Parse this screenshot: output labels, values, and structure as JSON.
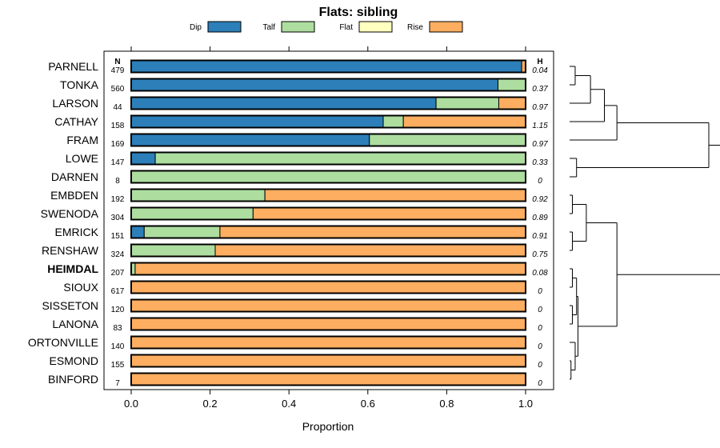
{
  "chart_data": {
    "type": "stacked-bar-horizontal",
    "title": "Flats: sibling",
    "xlabel": "Proportion",
    "xlim": [
      0,
      1
    ],
    "xticks": [
      "0.0",
      "0.2",
      "0.4",
      "0.6",
      "0.8",
      "1.0"
    ],
    "xtick_values": [
      0,
      0.2,
      0.4,
      0.6,
      0.8,
      1.0
    ],
    "n_header": "N",
    "h_header": "H",
    "legend": [
      {
        "name": "Dip",
        "color": "#2c7fb8"
      },
      {
        "name": "Talf",
        "color": "#addd9f"
      },
      {
        "name": "Flat",
        "color": "#ffffbf"
      },
      {
        "name": "Rise",
        "color": "#fdae61"
      }
    ],
    "rows": [
      {
        "label": "PARNELL",
        "n": "479",
        "h": "0.04",
        "bold": false,
        "values": [
          0.99,
          0.0,
          0.0,
          0.01
        ]
      },
      {
        "label": "TONKA",
        "n": "560",
        "h": "0.37",
        "bold": false,
        "values": [
          0.93,
          0.07,
          0.0,
          0.0
        ]
      },
      {
        "label": "LARSON",
        "n": "44",
        "h": "0.97",
        "bold": false,
        "values": [
          0.773,
          0.159,
          0.0,
          0.068
        ]
      },
      {
        "label": "CATHAY",
        "n": "158",
        "h": "1.15",
        "bold": false,
        "values": [
          0.639,
          0.051,
          0.0,
          0.31
        ]
      },
      {
        "label": "FRAM",
        "n": "169",
        "h": "0.97",
        "bold": false,
        "values": [
          0.604,
          0.396,
          0.0,
          0.0
        ]
      },
      {
        "label": "LOWE",
        "n": "147",
        "h": "0.33",
        "bold": false,
        "values": [
          0.061,
          0.939,
          0.0,
          0.0
        ]
      },
      {
        "label": "DARNEN",
        "n": "8",
        "h": "0",
        "bold": false,
        "values": [
          0.0,
          1.0,
          0.0,
          0.0
        ]
      },
      {
        "label": "EMBDEN",
        "n": "192",
        "h": "0.92",
        "bold": false,
        "values": [
          0.0,
          0.339,
          0.0,
          0.661
        ]
      },
      {
        "label": "SWENODA",
        "n": "304",
        "h": "0.89",
        "bold": false,
        "values": [
          0.0,
          0.309,
          0.0,
          0.691
        ]
      },
      {
        "label": "EMRICK",
        "n": "151",
        "h": "0.91",
        "bold": false,
        "values": [
          0.033,
          0.192,
          0.0,
          0.775
        ]
      },
      {
        "label": "RENSHAW",
        "n": "324",
        "h": "0.75",
        "bold": false,
        "values": [
          0.0,
          0.213,
          0.0,
          0.787
        ]
      },
      {
        "label": "HEIMDAL",
        "n": "207",
        "h": "0.08",
        "bold": true,
        "values": [
          0.0,
          0.01,
          0.0,
          0.99
        ]
      },
      {
        "label": "SIOUX",
        "n": "617",
        "h": "0",
        "bold": false,
        "values": [
          0.0,
          0.0,
          0.0,
          1.0
        ]
      },
      {
        "label": "SISSETON",
        "n": "120",
        "h": "0",
        "bold": false,
        "values": [
          0.0,
          0.0,
          0.0,
          1.0
        ]
      },
      {
        "label": "LANONA",
        "n": "83",
        "h": "0",
        "bold": false,
        "values": [
          0.0,
          0.0,
          0.0,
          1.0
        ]
      },
      {
        "label": "ORTONVILLE",
        "n": "140",
        "h": "0",
        "bold": false,
        "values": [
          0.0,
          0.0,
          0.0,
          1.0
        ]
      },
      {
        "label": "ESMOND",
        "n": "155",
        "h": "0",
        "bold": false,
        "values": [
          0.0,
          0.0,
          0.0,
          1.0
        ]
      },
      {
        "label": "BINFORD",
        "n": "7",
        "h": "0",
        "bold": false,
        "values": [
          0.0,
          0.0,
          0.0,
          1.0
        ]
      }
    ],
    "dendrogram": {
      "leaf_order": [
        "PARNELL",
        "TONKA",
        "LARSON",
        "CATHAY",
        "FRAM",
        "LOWE",
        "DARNEN",
        "EMBDEN",
        "SWENODA",
        "EMRICK",
        "RENSHAW",
        "HEIMDAL",
        "SIOUX",
        "SISSETON",
        "LANONA",
        "ORTONVILLE",
        "ESMOND",
        "BINFORD"
      ],
      "height_max": 1.0,
      "merges": [
        {
          "id": "a",
          "left": 0,
          "right": 1,
          "height": 0.04
        },
        {
          "id": "b",
          "left": "a",
          "right": 2,
          "height": 0.15
        },
        {
          "id": "c",
          "left": "b",
          "right": 3,
          "height": 0.25
        },
        {
          "id": "d",
          "left": "c",
          "right": 4,
          "height": 0.34
        },
        {
          "id": "e",
          "left": 5,
          "right": 6,
          "height": 0.05
        },
        {
          "id": "f",
          "left": "d",
          "right": "e",
          "height": 1.0
        },
        {
          "id": "g",
          "left": 7,
          "right": 8,
          "height": 0.02
        },
        {
          "id": "h",
          "left": 9,
          "right": 10,
          "height": 0.02
        },
        {
          "id": "i",
          "left": "g",
          "right": "h",
          "height": 0.12
        },
        {
          "id": "j",
          "left": 11,
          "right": 12,
          "height": 0.02
        },
        {
          "id": "k",
          "left": 13,
          "right": 14,
          "height": 0.02
        },
        {
          "id": "l",
          "left": 16,
          "right": 17,
          "height": 0.01
        },
        {
          "id": "m",
          "left": 15,
          "right": "l",
          "height": 0.04
        },
        {
          "id": "n",
          "left": "j",
          "right": "k",
          "height": 0.05
        },
        {
          "id": "o",
          "left": "n",
          "right": "m",
          "height": 0.06
        },
        {
          "id": "p",
          "left": "i",
          "right": "o",
          "height": 0.34
        },
        {
          "id": "q",
          "left": "f",
          "right": "p",
          "height": 1.15
        }
      ]
    }
  }
}
